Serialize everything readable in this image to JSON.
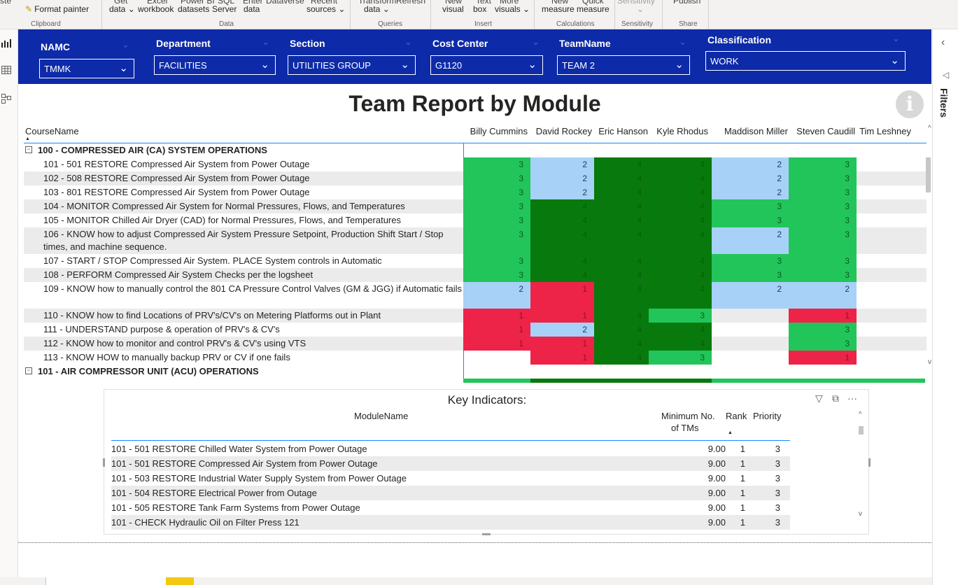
{
  "ribbon": {
    "top_labels": [
      "Get",
      "Excel",
      "Power BI",
      "SQL",
      "Enter",
      "Dataverse",
      "Recent",
      "Transform",
      "Refresh",
      "New",
      "Text",
      "More",
      "New",
      "Quick",
      "Sensitivity",
      "Publish"
    ],
    "format_painter": "Format painter",
    "items": [
      "data ⌄",
      "workbook",
      "datasets",
      "Server",
      "data",
      "sources ⌄",
      "data ⌄",
      "visual",
      "box",
      "visuals ⌄",
      "measure",
      "measure",
      "⌄"
    ],
    "groups": [
      "Clipboard",
      "Data",
      "Queries",
      "Insert",
      "Calculations",
      "Sensitivity",
      "Share"
    ]
  },
  "slicers": [
    {
      "title": "NAMC",
      "value": "TMMK"
    },
    {
      "title": "Department",
      "value": "FACILITIES"
    },
    {
      "title": "Section",
      "value": "UTILITIES GROUP"
    },
    {
      "title": "Cost Center",
      "value": "G1120"
    },
    {
      "title": "TeamName",
      "value": "TEAM 2"
    },
    {
      "title": "Classification",
      "value": "WORK"
    }
  ],
  "report_title": "Team Report by Module",
  "filters_label": "Filters",
  "matrix": {
    "row_header": "CourseName",
    "columns": [
      "Billy Cummins",
      "David Rockey",
      "Eric Hanson",
      "Kyle Rhodus",
      "Maddison Miller",
      "Steven Caudill",
      "Tim Leshney"
    ],
    "rows": [
      {
        "type": "group",
        "label": "100 - COMPRESSED AIR (CA) SYSTEM OPERATIONS",
        "values": [
          null,
          null,
          null,
          null,
          null,
          null,
          null
        ]
      },
      {
        "type": "row",
        "label": "101 - 501 RESTORE Compressed Air System from Power Outage",
        "values": [
          3,
          2,
          4,
          4,
          2,
          3,
          null
        ]
      },
      {
        "type": "row",
        "label": "102 - 508 RESTORE Compressed Air System from Power Outage",
        "values": [
          3,
          2,
          4,
          4,
          2,
          3,
          null
        ]
      },
      {
        "type": "row",
        "label": "103 - 801 RESTORE Compressed Air System from Power Outage",
        "values": [
          3,
          2,
          4,
          4,
          2,
          3,
          null
        ]
      },
      {
        "type": "row",
        "label": "104 - MONITOR Compressed Air System for Normal Pressures, Flows, and Temperatures",
        "values": [
          3,
          4,
          4,
          4,
          3,
          3,
          null
        ]
      },
      {
        "type": "row",
        "label": "105 - MONITOR Chilled Air Dryer (CAD) for Normal Pressures, Flows, and Temperatures",
        "values": [
          3,
          4,
          4,
          4,
          3,
          3,
          null
        ]
      },
      {
        "type": "row",
        "label": "106 - KNOW how to adjust Compressed Air System Pressure Setpoint, Production Shift Start / Stop times, and machine sequence.",
        "values": [
          3,
          4,
          4,
          4,
          2,
          3,
          null
        ],
        "tall": true
      },
      {
        "type": "row",
        "label": "107 - START / STOP Compressed Air System. PLACE System controls in Automatic",
        "values": [
          3,
          4,
          4,
          4,
          3,
          3,
          null
        ]
      },
      {
        "type": "row",
        "label": "108 - PERFORM Compressed Air System Checks per the logsheet",
        "values": [
          3,
          4,
          4,
          4,
          3,
          3,
          null
        ]
      },
      {
        "type": "row",
        "label": "109 - KNOW how to manually control the 801 CA Pressure Control Valves (GM & JGG) if Automatic fails",
        "values": [
          2,
          1,
          4,
          4,
          2,
          2,
          null
        ],
        "tall": true
      },
      {
        "type": "row",
        "label": "110 - KNOW how to find Locations of PRV's/CV's on Metering Platforms out in Plant",
        "values": [
          1,
          1,
          4,
          3,
          null,
          1,
          null
        ]
      },
      {
        "type": "row",
        "label": "111 - UNDERSTAND purpose & operation of PRV's & CV's",
        "values": [
          1,
          2,
          4,
          4,
          null,
          3,
          null
        ]
      },
      {
        "type": "row",
        "label": "112 - KNOW how to monitor and control PRV's & CV's using VTS",
        "values": [
          1,
          1,
          4,
          4,
          null,
          3,
          null
        ]
      },
      {
        "type": "row",
        "label": "113 - KNOW HOW to manually backup PRV or CV if one fails",
        "values": [
          null,
          1,
          4,
          3,
          null,
          1,
          null
        ]
      },
      {
        "type": "group",
        "label": "101 - AIR COMPRESSOR UNIT (ACU) OPERATIONS",
        "values": [
          null,
          null,
          null,
          null,
          null,
          null,
          null
        ]
      }
    ]
  },
  "key_indicators": {
    "title": "Key Indicators:",
    "headers": {
      "module": "ModuleName",
      "min_tms_1": "Minimum No.",
      "min_tms_2": "of TMs",
      "rank": "Rank",
      "priority": "Priority"
    },
    "rows": [
      {
        "module": "101 - 501 RESTORE Chilled Water System from Power Outage",
        "min": "9.00",
        "rank": "1",
        "priority": "3"
      },
      {
        "module": "101 - 501 RESTORE Compressed Air System from Power Outage",
        "min": "9.00",
        "rank": "1",
        "priority": "3"
      },
      {
        "module": "101 - 503 RESTORE Industrial Water Supply System from Power Outage",
        "min": "9.00",
        "rank": "1",
        "priority": "3"
      },
      {
        "module": "101 - 504 RESTORE Electrical Power from Outage",
        "min": "9.00",
        "rank": "1",
        "priority": "3"
      },
      {
        "module": "101 - 505 RESTORE Tank Farm Systems from Power Outage",
        "min": "9.00",
        "rank": "1",
        "priority": "3"
      },
      {
        "module": "101 - CHECK Hydraulic Oil on Filter Press 121",
        "min": "9.00",
        "rank": "1",
        "priority": "3"
      }
    ]
  },
  "colors": {
    "slicer_bg": "#0d2aa8",
    "level_1": "#ee2348",
    "level_2": "#a8d1f7",
    "level_3": "#22c55a",
    "level_4": "#087a0d",
    "accent": "#118dff"
  },
  "icons": [
    "format-painter-icon",
    "bar-chart-view-icon",
    "table-view-icon",
    "model-view-icon",
    "collapse-pane-icon",
    "filter-icon",
    "info-icon",
    "focus-mode-icon",
    "more-options-icon"
  ]
}
